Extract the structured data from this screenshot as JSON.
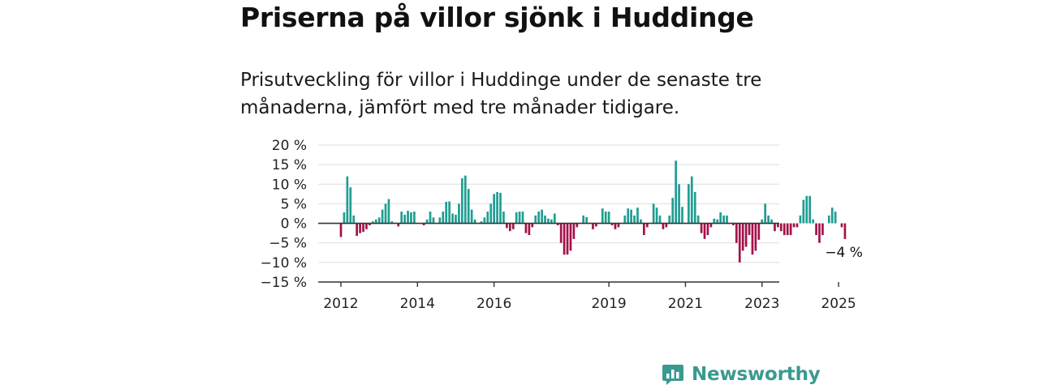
{
  "title": "Priserna på villor sjönk i Huddinge",
  "subtitle": "Prisutveckling för villor i Huddinge under de senaste tre månaderna, jämfört med tre månader tidigare.",
  "brand": {
    "name": "Newsworthy",
    "icon": "bar-chart-speech-bubble-icon"
  },
  "colors": {
    "positive": "#1f9e92",
    "negative": "#a3124a",
    "grid": "#dddddd",
    "axis": "#333333",
    "brand": "#3a9a8f"
  },
  "chart_data": {
    "type": "bar",
    "title": "",
    "xlabel": "",
    "ylabel": "",
    "ylim": [
      -15,
      20
    ],
    "yticks": [
      20,
      15,
      10,
      5,
      0,
      -5,
      -10,
      -15
    ],
    "ytick_labels": [
      "20 %",
      "15 %",
      "10 %",
      "5 %",
      "0 %",
      "−5 %",
      "−10 %",
      "−15 %"
    ],
    "x_start": "2012-01",
    "frequency": "monthly",
    "xticks": [
      {
        "label": "2012",
        "month": "2012-01"
      },
      {
        "label": "2014",
        "month": "2014-01"
      },
      {
        "label": "2016",
        "month": "2016-01"
      },
      {
        "label": "2019",
        "month": "2019-01"
      },
      {
        "label": "2021",
        "month": "2021-01"
      },
      {
        "label": "2023",
        "month": "2023-01"
      },
      {
        "label": "2025",
        "month": "2025-01"
      }
    ],
    "values": [
      -3.5,
      2.8,
      12,
      9.2,
      2,
      -3.2,
      -2.5,
      -2.2,
      -1.5,
      -0.5,
      0.5,
      1,
      1.5,
      3.5,
      5,
      6.2,
      0.5,
      0,
      -0.8,
      3,
      2.2,
      3.2,
      2.8,
      3,
      0,
      0,
      -0.5,
      1,
      3,
      1.5,
      0,
      1.5,
      3,
      5.5,
      5.6,
      2.5,
      2.2,
      5,
      11.5,
      12.2,
      8.8,
      3.5,
      1,
      0,
      0.5,
      1.5,
      3,
      5,
      7.5,
      8,
      7.8,
      3,
      -1.2,
      -2,
      -1.5,
      2.8,
      3,
      3,
      -2.5,
      -3,
      -1,
      2,
      3,
      3.5,
      2,
      1.2,
      1,
      2.5,
      -0.5,
      -5,
      -8,
      -8,
      -7,
      -4,
      -1,
      0,
      2,
      1.6,
      0,
      -1.5,
      -0.8,
      0,
      3.8,
      3,
      3,
      -0.5,
      -1.5,
      -1,
      0,
      2,
      3.8,
      3.5,
      2,
      4,
      1,
      -3,
      -1,
      0,
      5,
      4,
      2,
      -1.5,
      -1,
      2,
      6.5,
      16,
      10,
      4.2,
      0,
      10,
      12,
      8,
      2,
      -2.5,
      -4,
      -3,
      -1,
      1.2,
      1,
      2.8,
      2,
      2,
      0,
      -0.5,
      -5,
      -10,
      -7,
      -6,
      -3,
      -8,
      -7,
      -4.2,
      1,
      5,
      2,
      1,
      -2,
      -1,
      -2,
      -3,
      -3,
      -3,
      -1,
      -1,
      2,
      6,
      7,
      7,
      1,
      -3,
      -5,
      -3,
      0,
      2,
      4,
      3,
      0,
      -1,
      -4
    ],
    "annotation": {
      "label": "−4 %",
      "index": "last"
    }
  }
}
